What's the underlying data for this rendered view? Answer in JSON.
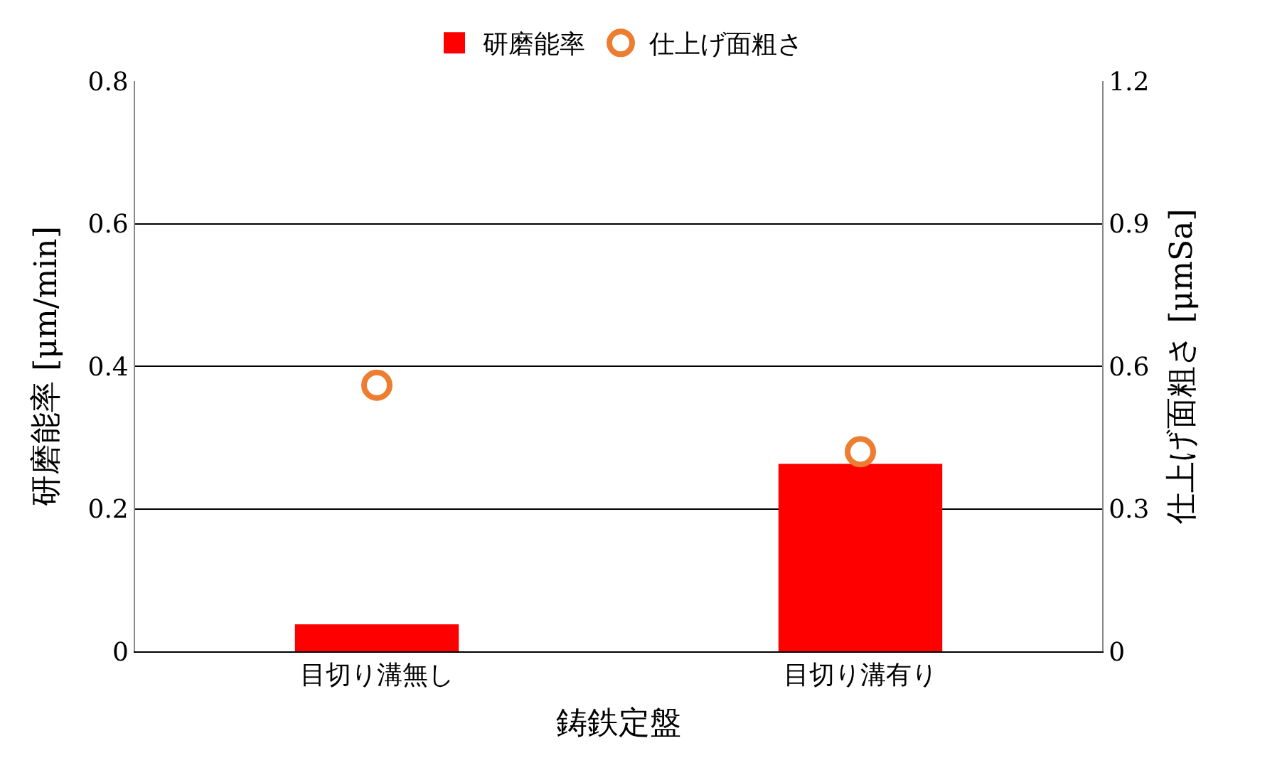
{
  "chart_data": {
    "type": "bar",
    "categories": [
      "目切り溝無し",
      "目切り溝有り"
    ],
    "xlabel": "鋳鉄定盤",
    "ylabel": "研磨能率 [μm/min]",
    "y2label": "仕上げ面粗さ [μmSa]",
    "series": [
      {
        "name": "研磨能率",
        "color": "#ff0000",
        "values": [
          0.035,
          0.26
        ]
      },
      {
        "name": "仕上げ面粗さ",
        "type": "scatter",
        "axis": "y2",
        "color": "#ed7d31",
        "values": [
          0.56,
          0.42
        ]
      }
    ],
    "ylim": [
      0,
      0.8
    ],
    "yticks": [
      {
        "value": 0,
        "label": "0"
      },
      {
        "value": 0.2,
        "label": "0.2"
      },
      {
        "value": 0.4,
        "label": "0.4"
      },
      {
        "value": 0.6,
        "label": "0.6"
      },
      {
        "value": 0.8,
        "label": "0.8"
      }
    ],
    "y2lim": [
      0,
      1.2
    ],
    "y2ticks": [
      {
        "value": 0,
        "label": "0"
      },
      {
        "value": 0.3,
        "label": "0.3"
      },
      {
        "value": 0.6,
        "label": "0.6"
      },
      {
        "value": 0.9,
        "label": "0.9"
      },
      {
        "value": 1.2,
        "label": "1.2"
      }
    ],
    "grid": "y",
    "legend": "top",
    "marker": "circle"
  }
}
